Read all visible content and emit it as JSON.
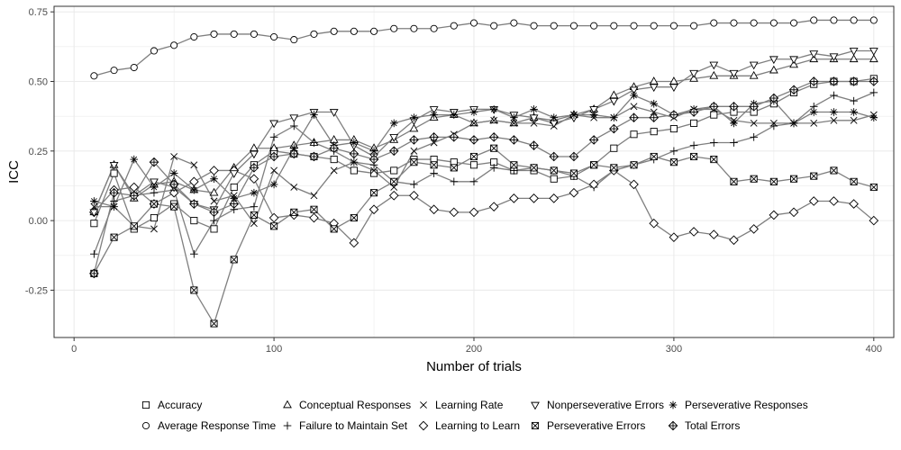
{
  "chart_data": {
    "type": "line",
    "xlabel": "Number of trials",
    "ylabel": "ICC",
    "xlim": [
      -10,
      410
    ],
    "ylim": [
      -0.42,
      0.77
    ],
    "xticks": [
      0,
      100,
      200,
      300,
      400
    ],
    "yticks": [
      -0.25,
      0.0,
      0.25,
      0.5,
      0.75
    ],
    "ytick_labels": [
      "-0.25",
      "0.00",
      "0.25",
      "0.50",
      "0.75"
    ],
    "grid": true,
    "legend_position": "bottom",
    "x": [
      10,
      20,
      30,
      40,
      50,
      60,
      70,
      80,
      90,
      100,
      110,
      120,
      130,
      140,
      150,
      160,
      170,
      180,
      190,
      200,
      210,
      220,
      230,
      240,
      250,
      260,
      270,
      280,
      290,
      300,
      310,
      320,
      330,
      340,
      350,
      360,
      370,
      380,
      390,
      400
    ],
    "series": [
      {
        "name": "Accuracy",
        "marker": "square",
        "values": [
          -0.01,
          0.17,
          -0.03,
          0.01,
          0.06,
          0.0,
          -0.03,
          0.12,
          0.2,
          0.25,
          0.24,
          0.23,
          0.22,
          0.18,
          0.17,
          0.18,
          0.22,
          0.22,
          0.21,
          0.2,
          0.21,
          0.18,
          0.18,
          0.15,
          0.16,
          0.2,
          0.26,
          0.31,
          0.32,
          0.33,
          0.35,
          0.38,
          0.39,
          0.39,
          0.42,
          0.46,
          0.49,
          0.5,
          0.5,
          0.51
        ]
      },
      {
        "name": "Average Response Time",
        "marker": "circle",
        "values": [
          0.52,
          0.54,
          0.55,
          0.61,
          0.63,
          0.66,
          0.67,
          0.67,
          0.67,
          0.66,
          0.65,
          0.67,
          0.68,
          0.68,
          0.68,
          0.69,
          0.69,
          0.69,
          0.7,
          0.71,
          0.7,
          0.71,
          0.7,
          0.7,
          0.7,
          0.7,
          0.7,
          0.7,
          0.7,
          0.7,
          0.7,
          0.71,
          0.71,
          0.71,
          0.71,
          0.71,
          0.72,
          0.72,
          0.72,
          0.72
        ]
      },
      {
        "name": "Conceptual Responses",
        "marker": "triangle-up",
        "values": [
          0.03,
          0.2,
          0.08,
          0.13,
          0.14,
          0.11,
          0.1,
          0.19,
          0.26,
          0.26,
          0.27,
          0.28,
          0.29,
          0.29,
          0.26,
          0.29,
          0.33,
          0.37,
          0.38,
          0.35,
          0.36,
          0.35,
          0.37,
          0.36,
          0.38,
          0.4,
          0.45,
          0.48,
          0.5,
          0.5,
          0.51,
          0.52,
          0.52,
          0.52,
          0.54,
          0.56,
          0.58,
          0.58,
          0.58,
          0.58
        ]
      },
      {
        "name": "Failure to Maintain Set",
        "marker": "plus",
        "values": [
          -0.12,
          0.07,
          0.09,
          0.1,
          0.11,
          -0.12,
          0.0,
          0.04,
          0.05,
          0.3,
          0.34,
          0.28,
          0.25,
          0.21,
          0.2,
          0.14,
          0.13,
          0.17,
          0.14,
          0.14,
          0.19,
          0.18,
          0.19,
          0.18,
          0.16,
          0.12,
          0.18,
          0.2,
          0.22,
          0.25,
          0.27,
          0.28,
          0.28,
          0.3,
          0.34,
          0.35,
          0.41,
          0.45,
          0.43,
          0.46
        ]
      },
      {
        "name": "Learning Rate",
        "marker": "x",
        "values": [
          0.05,
          0.05,
          -0.02,
          -0.03,
          0.23,
          0.2,
          0.07,
          0.09,
          -0.01,
          0.18,
          0.12,
          0.09,
          0.18,
          0.21,
          0.18,
          0.12,
          0.25,
          0.28,
          0.31,
          0.35,
          0.36,
          0.35,
          0.35,
          0.34,
          0.38,
          0.37,
          0.37,
          0.41,
          0.39,
          0.37,
          0.4,
          0.4,
          0.36,
          0.35,
          0.35,
          0.35,
          0.35,
          0.36,
          0.36,
          0.38
        ]
      },
      {
        "name": "Learning to Learn",
        "marker": "diamond",
        "values": [
          0.03,
          0.11,
          0.12,
          0.06,
          0.1,
          0.14,
          0.18,
          0.18,
          0.15,
          0.01,
          0.02,
          0.01,
          -0.01,
          -0.08,
          0.04,
          0.09,
          0.09,
          0.04,
          0.03,
          0.03,
          0.05,
          0.08,
          0.08,
          0.08,
          0.1,
          0.13,
          0.18,
          0.13,
          -0.01,
          -0.06,
          -0.04,
          -0.05,
          -0.07,
          -0.03,
          0.02,
          0.03,
          0.07,
          0.07,
          0.06,
          0.0
        ]
      },
      {
        "name": "Nonperseverative Errors",
        "marker": "triangle-down",
        "values": [
          0.03,
          0.2,
          0.09,
          0.14,
          0.12,
          0.06,
          0.04,
          0.17,
          0.24,
          0.35,
          0.37,
          0.39,
          0.39,
          0.27,
          0.23,
          0.3,
          0.36,
          0.4,
          0.39,
          0.4,
          0.4,
          0.38,
          0.37,
          0.35,
          0.37,
          0.4,
          0.43,
          0.47,
          0.48,
          0.48,
          0.53,
          0.56,
          0.53,
          0.56,
          0.58,
          0.58,
          0.6,
          0.59,
          0.61,
          0.61
        ]
      },
      {
        "name": "Perseverative Errors",
        "marker": "square-x",
        "values": [
          -0.19,
          -0.06,
          -0.02,
          0.06,
          0.05,
          -0.25,
          -0.37,
          -0.14,
          0.02,
          -0.02,
          0.03,
          0.04,
          -0.03,
          0.01,
          0.1,
          0.14,
          0.21,
          0.2,
          0.19,
          0.23,
          0.26,
          0.2,
          0.19,
          0.18,
          0.17,
          0.2,
          0.19,
          0.2,
          0.23,
          0.21,
          0.23,
          0.22,
          0.14,
          0.15,
          0.14,
          0.15,
          0.16,
          0.18,
          0.14,
          0.12
        ]
      },
      {
        "name": "Perseverative Responses",
        "marker": "asterisk",
        "values": [
          0.07,
          0.05,
          0.22,
          0.12,
          0.17,
          0.11,
          0.15,
          0.08,
          0.1,
          0.13,
          0.26,
          0.38,
          0.27,
          0.28,
          0.25,
          0.35,
          0.37,
          0.38,
          0.38,
          0.39,
          0.4,
          0.37,
          0.4,
          0.37,
          0.38,
          0.38,
          0.37,
          0.45,
          0.42,
          0.38,
          0.4,
          0.41,
          0.35,
          0.42,
          0.43,
          0.35,
          0.39,
          0.39,
          0.39,
          0.37
        ]
      },
      {
        "name": "Total Errors",
        "marker": "diamond-plus",
        "values": [
          -0.19,
          0.1,
          0.09,
          0.21,
          0.13,
          0.06,
          0.03,
          0.06,
          0.19,
          0.23,
          0.24,
          0.23,
          0.26,
          0.24,
          0.22,
          0.25,
          0.29,
          0.3,
          0.3,
          0.29,
          0.3,
          0.29,
          0.27,
          0.23,
          0.23,
          0.29,
          0.33,
          0.37,
          0.37,
          0.38,
          0.39,
          0.41,
          0.41,
          0.41,
          0.44,
          0.47,
          0.5,
          0.5,
          0.5,
          0.5
        ]
      }
    ]
  },
  "legend": {
    "rows": [
      [
        "Accuracy",
        "Conceptual Responses",
        "Learning Rate",
        "Nonperseverative Errors",
        "Perseverative Responses"
      ],
      [
        "Average Response Time",
        "Failure to Maintain Set",
        "Learning to Learn",
        "Perseverative Errors",
        "Total Errors"
      ]
    ]
  },
  "colors": {
    "line": "#7f7f7f",
    "marker": "#000000",
    "grid": "#ebebeb",
    "panel_border": "#333333"
  }
}
